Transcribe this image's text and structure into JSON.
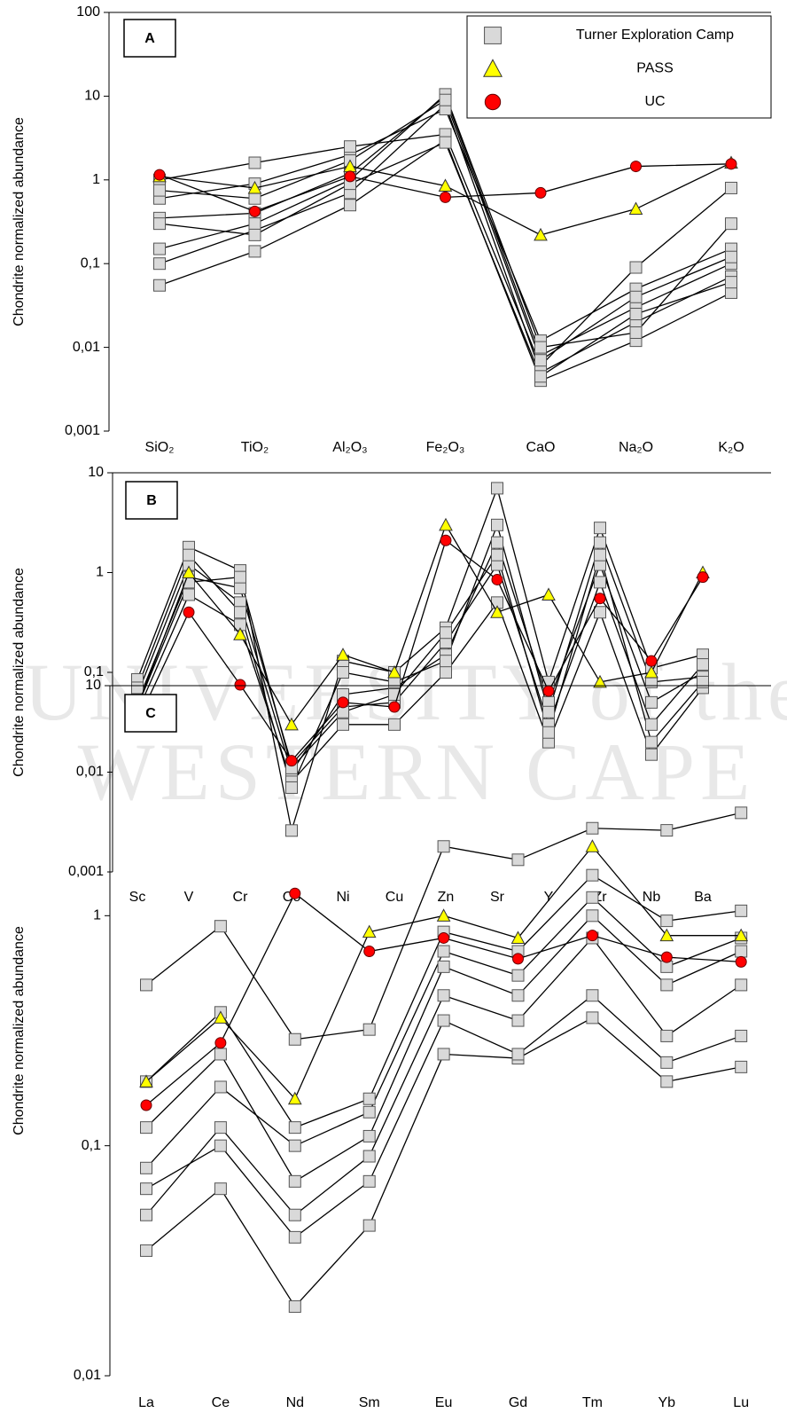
{
  "watermark": [
    "UNIVERSITY of the",
    "WESTERN CAPE"
  ],
  "chart_data": [
    {
      "type": "line",
      "label": "A",
      "ylabel": "Chondrite normalized abundance",
      "yscale": "log",
      "categories": [
        "SiO₂",
        "TiO₂",
        "Al₂O₃",
        "Fe₂O₃",
        "CaO",
        "Na₂O",
        "K₂O"
      ],
      "ylim": [
        0.001,
        100
      ],
      "yticks": [
        {
          "value": 0.001,
          "label": "0,001"
        },
        {
          "value": 0.01,
          "label": "0,01"
        },
        {
          "value": 0.1,
          "label": "0,1"
        },
        1,
        10,
        100
      ],
      "legend": "upper right",
      "series": [
        {
          "name": "Turner Exploration Camp",
          "marker": "square",
          "color": "#d9d9d9",
          "samples": [
            [
              0.055,
              0.14,
              0.5,
              3,
              0.004,
              0.012,
              0.045
            ],
            [
              0.1,
              0.25,
              0.7,
              8,
              0.005,
              0.02,
              0.07
            ],
            [
              0.35,
              0.4,
              1.2,
              10,
              0.008,
              0.03,
              0.1
            ],
            [
              0.6,
              0.9,
              2,
              7,
              0.012,
              0.05,
              0.15
            ],
            [
              1.0,
              1.6,
              2.5,
              3.5,
              0.006,
              0.09,
              0.8
            ],
            [
              0.15,
              0.3,
              1.0,
              10.5,
              0.01,
              0.015,
              0.3
            ],
            [
              0.3,
              0.22,
              0.9,
              2.8,
              0.0045,
              0.025,
              0.06
            ],
            [
              0.75,
              0.6,
              1.7,
              9,
              0.007,
              0.04,
              0.12
            ]
          ]
        },
        {
          "name": "PASS",
          "marker": "triangle",
          "color": "#ffff00",
          "values": [
            1.1,
            0.8,
            1.45,
            0.85,
            0.22,
            0.45,
            1.6
          ]
        },
        {
          "name": "UC",
          "marker": "circle",
          "color": "#ff0000",
          "values": [
            1.15,
            0.42,
            1.1,
            0.62,
            0.7,
            1.45,
            1.55
          ]
        }
      ]
    },
    {
      "type": "line",
      "label": "B",
      "ylabel": "Chondrite normalized abundance",
      "yscale": "log",
      "categories": [
        "Sc",
        "V",
        "Cr",
        "Co",
        "Ni",
        "Cu",
        "Zn",
        "Sr",
        "Y",
        "Zr",
        "Nb",
        "Ba"
      ],
      "ylim": [
        0.001,
        10
      ],
      "yticks": [
        {
          "value": 0.001,
          "label": "0,001"
        },
        {
          "value": 0.01,
          "label": "0,01"
        },
        {
          "value": 0.1,
          "label": "0,1"
        },
        1,
        10
      ],
      "series": [
        {
          "marker": "square",
          "color": "#d9d9d9",
          "samples": [
            [
              0.085,
              1.8,
              1.05,
              0.0026,
              0.13,
              0.1,
              0.28,
              7,
              0.08,
              2.8,
              0.11,
              0.15
            ],
            [
              0.06,
              1.2,
              0.5,
              0.01,
              0.06,
              0.07,
              0.15,
              2,
              0.05,
              1.2,
              0.05,
              0.1
            ],
            [
              0.04,
              0.6,
              0.3,
              0.008,
              0.03,
              0.03,
              0.1,
              0.5,
              0.02,
              0.4,
              0.015,
              0.07
            ],
            [
              0.05,
              0.9,
              0.7,
              0.012,
              0.045,
              0.05,
              0.2,
              1.2,
              0.03,
              0.8,
              0.03,
              0.12
            ],
            [
              0.07,
              1.5,
              0.4,
              0.007,
              0.1,
              0.08,
              0.13,
              3,
              0.04,
              2,
              0.08,
              0.09
            ],
            [
              0.045,
              0.8,
              0.9,
              0.011,
              0.04,
              0.06,
              0.25,
              1.5,
              0.025,
              1.5,
              0.02,
              0.08
            ]
          ]
        },
        {
          "marker": "triangle",
          "color": "#ffff00",
          "values": [
            0.045,
            1.0,
            0.24,
            0.03,
            0.15,
            0.1,
            3.0,
            0.4,
            0.6,
            0.08,
            0.1,
            1.0
          ]
        },
        {
          "marker": "circle",
          "color": "#ff0000",
          "values": [
            0.032,
            0.4,
            0.075,
            0.013,
            0.05,
            0.045,
            2.1,
            0.85,
            0.065,
            0.55,
            0.13,
            0.9
          ]
        }
      ]
    },
    {
      "type": "line",
      "label": "C",
      "ylabel": "Chondrite normalized abundance",
      "yscale": "log",
      "categories": [
        "La",
        "Ce",
        "Nd",
        "Sm",
        "Eu",
        "Gd",
        "Tm",
        "Yb",
        "Lu"
      ],
      "ylim": [
        0.01,
        10
      ],
      "yticks": [
        {
          "value": 0.01,
          "label": "0,01"
        },
        {
          "value": 0.1,
          "label": "0,1"
        },
        1,
        10
      ],
      "series": [
        {
          "marker": "square",
          "color": "#d9d9d9",
          "samples": [
            [
              0.5,
              0.9,
              0.29,
              0.32,
              2.0,
              1.75,
              2.4,
              2.35,
              2.8
            ],
            [
              0.035,
              0.065,
              0.02,
              0.045,
              0.25,
              0.24,
              0.36,
              0.19,
              0.22
            ],
            [
              0.08,
              0.18,
              0.1,
              0.14,
              0.7,
              0.55,
              1.2,
              0.6,
              0.8
            ],
            [
              0.05,
              0.12,
              0.05,
              0.09,
              0.45,
              0.35,
              0.8,
              0.3,
              0.5
            ],
            [
              0.19,
              0.38,
              0.12,
              0.16,
              0.85,
              0.7,
              1.5,
              0.95,
              1.05
            ],
            [
              0.065,
              0.1,
              0.04,
              0.07,
              0.35,
              0.25,
              0.45,
              0.23,
              0.3
            ],
            [
              0.12,
              0.25,
              0.07,
              0.11,
              0.6,
              0.45,
              1.0,
              0.5,
              0.7
            ]
          ]
        },
        {
          "marker": "triangle",
          "color": "#ffff00",
          "values": [
            0.19,
            0.36,
            0.16,
            0.85,
            1.0,
            0.8,
            2.0,
            0.82,
            0.82
          ]
        },
        {
          "marker": "circle",
          "color": "#ff0000",
          "values": [
            0.15,
            0.28,
            1.25,
            0.7,
            0.8,
            0.65,
            0.82,
            0.66,
            0.63
          ]
        }
      ]
    }
  ]
}
